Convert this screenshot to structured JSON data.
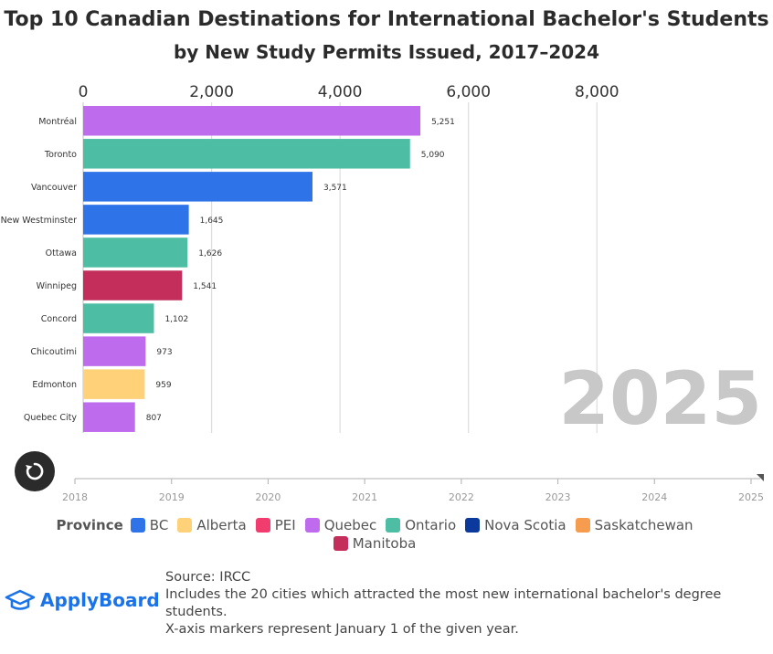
{
  "title": "Top 10 Canadian Destinations for International Bachelor's Students",
  "subtitle": "by New Study Permits Issued, 2017–2024",
  "chart_data": {
    "type": "bar",
    "orientation": "horizontal",
    "title": "Top 10 Canadian Destinations for International Bachelor's Students",
    "subtitle": "by New Study Permits Issued, 2017–2024",
    "current_year": "2025",
    "xlim": [
      0,
      10500
    ],
    "x_ticks": [
      0,
      2000,
      4000,
      6000,
      8000
    ],
    "x_tick_labels": [
      "0",
      "2,000",
      "4,000",
      "6,000",
      "8,000"
    ],
    "grid": true,
    "categories": [
      "Montréal",
      "Toronto",
      "Vancouver",
      "New Westminster",
      "Ottawa",
      "Winnipeg",
      "Concord",
      "Chicoutimi",
      "Edmonton",
      "Quebec City"
    ],
    "values": [
      5251,
      5090,
      3571,
      1645,
      1626,
      1541,
      1102,
      973,
      959,
      807
    ],
    "value_labels": [
      "5,251",
      "5,090",
      "3,571",
      "1,645",
      "1,626",
      "1,541",
      "1,102",
      "973",
      "959",
      "807"
    ],
    "provinces": [
      "Quebec",
      "Ontario",
      "BC",
      "BC",
      "Ontario",
      "Manitoba",
      "Ontario",
      "Quebec",
      "Alberta",
      "Quebec"
    ],
    "timeline": {
      "years": [
        "2018",
        "2019",
        "2020",
        "2021",
        "2022",
        "2023",
        "2024",
        "2025"
      ],
      "current": "2025"
    }
  },
  "legend": {
    "title": "Province",
    "items": [
      {
        "label": "BC",
        "color": "#2e74e8"
      },
      {
        "label": "Alberta",
        "color": "#ffd27a"
      },
      {
        "label": "PEI",
        "color": "#f03d6e"
      },
      {
        "label": "Quebec",
        "color": "#bf6bee"
      },
      {
        "label": "Ontario",
        "color": "#4dbea3"
      },
      {
        "label": "Nova Scotia",
        "color": "#0c3a9c"
      },
      {
        "label": "Saskatchewan",
        "color": "#f59c4e"
      },
      {
        "label": "Manitoba",
        "color": "#c42e5b"
      }
    ]
  },
  "colors": {
    "BC": "#2e74e8",
    "Alberta": "#ffd27a",
    "PEI": "#f03d6e",
    "Quebec": "#bf6bee",
    "Ontario": "#4dbea3",
    "Nova Scotia": "#0c3a9c",
    "Saskatchewan": "#f59c4e",
    "Manitoba": "#c42e5b"
  },
  "logo": {
    "text": "ApplyBoard",
    "icon": "graduation-cap-icon"
  },
  "notes": [
    "Source: IRCC",
    "Includes the 20 cities which attracted the most new international bachelor's degree students.",
    "X-axis markers represent January 1 of the given year."
  ],
  "replay_icon": "replay-icon"
}
